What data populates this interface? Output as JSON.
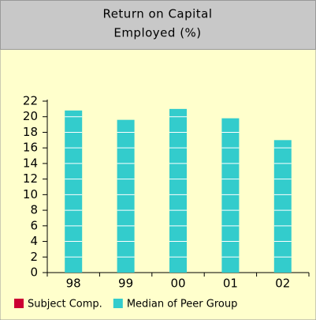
{
  "chart_data": {
    "type": "bar",
    "title": [
      "Return on Capital",
      "Employed (%)"
    ],
    "categories": [
      "98",
      "99",
      "00",
      "01",
      "02"
    ],
    "series": [
      {
        "name": "Subject Comp.",
        "color": "#cc0033",
        "values": [
          null,
          null,
          null,
          null,
          null
        ]
      },
      {
        "name": "Median of Peer Group",
        "color": "#33cccc",
        "values": [
          20.8,
          19.6,
          21.0,
          19.8,
          17.0
        ]
      }
    ],
    "ylim": [
      0,
      22
    ],
    "yticks": [
      0,
      2,
      4,
      6,
      8,
      10,
      12,
      14,
      16,
      18,
      20,
      22
    ],
    "grid": true
  }
}
